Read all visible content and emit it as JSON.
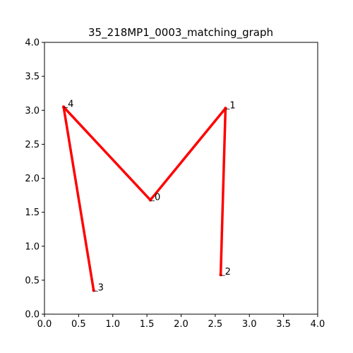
{
  "chart_data": {
    "type": "line",
    "title": "35_218MP1_0003_matching_graph",
    "xlim": [
      0,
      4.0
    ],
    "ylim": [
      0,
      4.0
    ],
    "x_ticks": [
      "0.0",
      "0.5",
      "1.0",
      "1.5",
      "2.0",
      "2.5",
      "3.0",
      "3.5",
      "4.0"
    ],
    "y_ticks": [
      "0.0",
      "0.5",
      "1.0",
      "1.5",
      "2.0",
      "2.5",
      "3.0",
      "3.5",
      "4.0"
    ],
    "nodes": [
      {
        "id": "0",
        "x": 1.55,
        "y": 1.68
      },
      {
        "id": "1",
        "x": 2.65,
        "y": 3.03
      },
      {
        "id": "2",
        "x": 2.58,
        "y": 0.58
      },
      {
        "id": "3",
        "x": 0.72,
        "y": 0.35
      },
      {
        "id": "4",
        "x": 0.28,
        "y": 3.05
      }
    ],
    "edges": [
      [
        "0",
        "1"
      ],
      [
        "0",
        "4"
      ],
      [
        "1",
        "2"
      ],
      [
        "3",
        "4"
      ]
    ],
    "edge_color": "#ff0000",
    "grid": false
  }
}
